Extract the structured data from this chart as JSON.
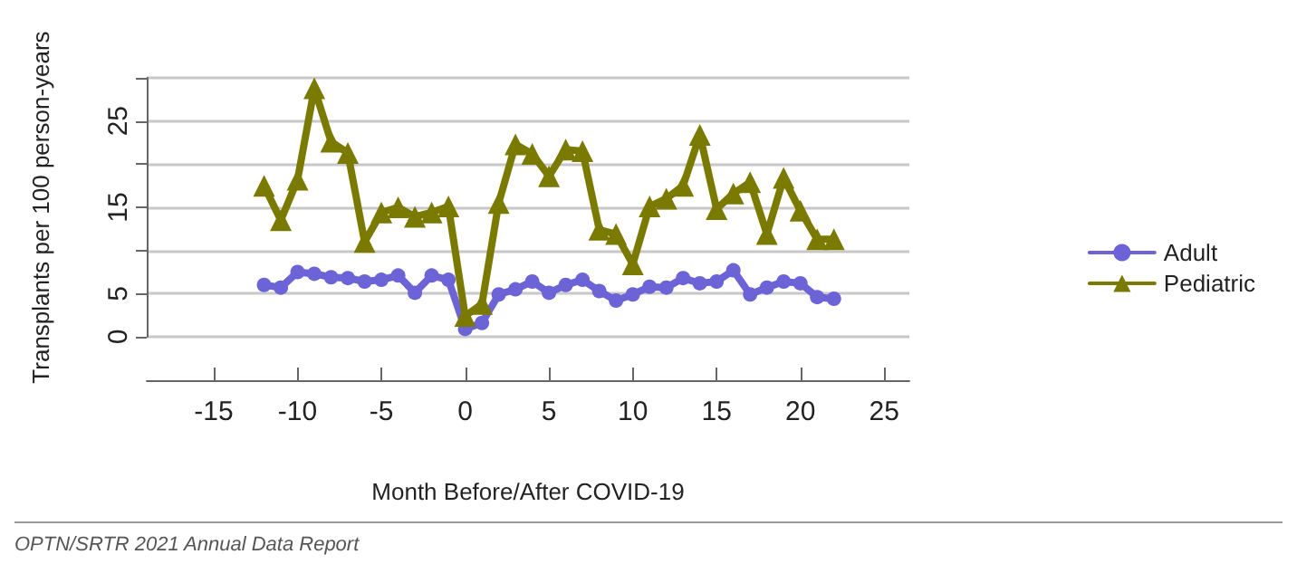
{
  "chart_data": {
    "type": "line",
    "xlabel": "Month Before/After COVID-19",
    "ylabel": "Transplants per 100 person-years",
    "annotations": [
      "OPTN/SRTR 2021 Annual Data Report"
    ],
    "x": [
      -12,
      -11,
      -10,
      -9,
      -8,
      -7,
      -6,
      -5,
      -4,
      -3,
      -2,
      -1,
      0,
      1,
      2,
      3,
      4,
      5,
      6,
      7,
      8,
      9,
      10,
      11,
      12,
      13,
      14,
      15,
      16,
      17,
      18,
      19,
      20,
      21,
      22
    ],
    "series": [
      {
        "name": "Adult",
        "color": "#6b63d6",
        "marker": "circle",
        "values": [
          6,
          5.7,
          7.5,
          7.3,
          6.9,
          6.8,
          6.4,
          6.6,
          7.1,
          5.1,
          7.1,
          6.6,
          0.9,
          1.6,
          4.9,
          5.5,
          6.4,
          5.1,
          6,
          6.6,
          5.3,
          4.2,
          4.9,
          5.8,
          5.7,
          6.8,
          6.2,
          6.4,
          7.7,
          4.9,
          5.7,
          6.4,
          6.2,
          4.6,
          4.4
        ]
      },
      {
        "name": "Pediatric",
        "color": "#7a7a00",
        "marker": "triangle",
        "values": [
          17.5,
          13.5,
          18.2,
          28.8,
          22.6,
          21.3,
          11,
          14.4,
          15,
          13.9,
          14.4,
          15.1,
          2.4,
          3.8,
          15.5,
          22.3,
          21.2,
          18.6,
          21.7,
          21.5,
          12.4,
          11.9,
          8.4,
          15.1,
          16,
          17.5,
          23.4,
          14.8,
          16.6,
          17.9,
          11.9,
          18.4,
          14.6,
          11.3,
          11.3
        ]
      }
    ],
    "xlim": [
      -19,
      26.5
    ],
    "xticks": [
      -15,
      -10,
      -5,
      0,
      5,
      10,
      15,
      20,
      25
    ],
    "ylim": [
      0,
      30
    ],
    "yticks": [
      0,
      5,
      {
        "value": 10,
        "label": null
      },
      15,
      {
        "value": 20,
        "label": null
      },
      25,
      {
        "value": 30,
        "label": null
      }
    ],
    "grid": "y",
    "legend": "right",
    "line_style": "solid"
  }
}
